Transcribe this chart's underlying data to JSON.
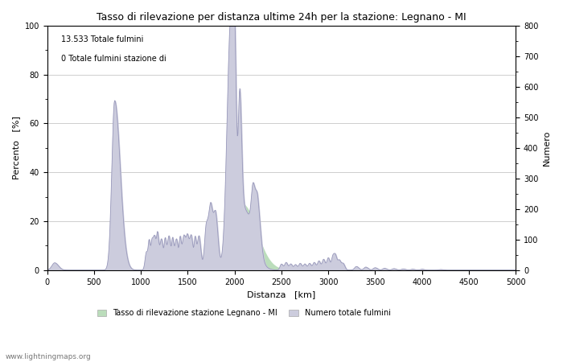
{
  "title": "Tasso di rilevazione per distanza ultime 24h per la stazione: Legnano - MI",
  "xlabel": "Distanza   [km]",
  "ylabel_left": "Percento   [%]",
  "ylabel_right": "Numero",
  "annotation_line1": "13.533 Totale fulmini",
  "annotation_line2": "0 Totale fulmini stazione di",
  "legend_label1": "Tasso di rilevazione stazione Legnano - MI",
  "legend_label2": "Numero totale fulmini",
  "watermark": "www.lightningmaps.org",
  "xlim": [
    0,
    5000
  ],
  "ylim_left": [
    0,
    100
  ],
  "ylim_right": [
    0,
    800
  ],
  "xticks": [
    0,
    500,
    1000,
    1500,
    2000,
    2500,
    3000,
    3500,
    4000,
    4500,
    5000
  ],
  "yticks_left": [
    0,
    20,
    40,
    60,
    80,
    100
  ],
  "yticks_right": [
    0,
    100,
    200,
    300,
    400,
    500,
    600,
    700,
    800
  ],
  "line_color": "#9999bb",
  "fill_green_color": "#bbddbb",
  "fill_blue_color": "#ccccdd",
  "background_color": "#ffffff",
  "grid_color": "#bbbbbb",
  "title_fontsize": 9,
  "label_fontsize": 8,
  "tick_fontsize": 7,
  "annotation_fontsize": 7
}
